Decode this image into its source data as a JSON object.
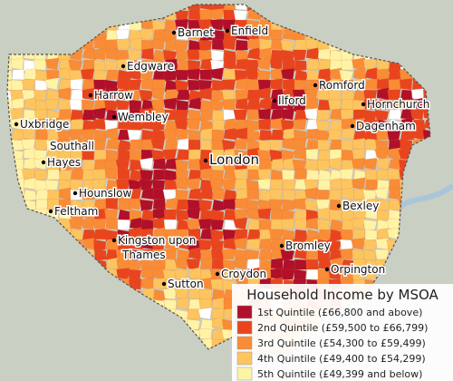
{
  "map": {
    "places": [
      "Barnet",
      "Enfield",
      "Edgware",
      "Harrow",
      "Wembley",
      "Romford",
      "Hornchurch",
      "Ilford",
      "Dagenham",
      "Uxbridge",
      "Southall",
      "Hayes",
      "London",
      "Hounslow",
      "Feltham",
      "Bexley",
      "Kingston upon",
      "Thames",
      "Bromley",
      "Sutton",
      "Croydon",
      "Orpington"
    ],
    "legend": {
      "title": "Household Income by MSOA",
      "items": [
        {
          "label": "1st Quintile (£66,800 and above)",
          "color": "#b0102a"
        },
        {
          "label": "2nd Quintile (£59,500 to £66,799)",
          "color": "#e8451e"
        },
        {
          "label": "3rd Quintile (£54,300 to £59,499)",
          "color": "#f98c36"
        },
        {
          "label": "4th Quintile (£49,400 to £54,299)",
          "color": "#fdc55f"
        },
        {
          "label": "5th Quintile (£49,399 and below)",
          "color": "#fff3a6"
        }
      ]
    }
  }
}
